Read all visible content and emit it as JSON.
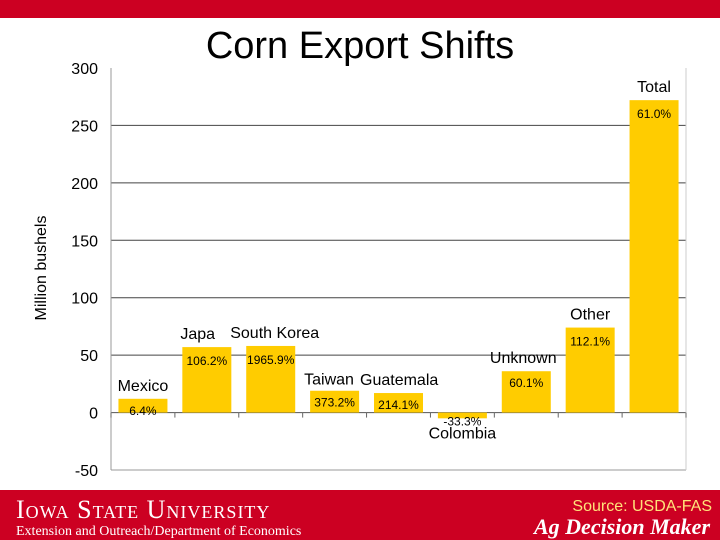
{
  "chart_data": {
    "type": "bar",
    "title": "Corn Export Shifts",
    "ylabel": "Million bushels",
    "xlabel": "",
    "ylim": [
      -50,
      300
    ],
    "yticks": [
      -50,
      0,
      50,
      100,
      150,
      200,
      250,
      300
    ],
    "grid": true,
    "categories": [
      "Mexico",
      "Japa",
      "South Korea",
      "Taiwan",
      "Guatemala",
      "Colombia",
      "Unknown",
      "Other",
      "Total"
    ],
    "values": [
      12,
      57,
      58,
      19,
      17,
      -5,
      36,
      74,
      272
    ],
    "data_labels": [
      "6.4%",
      "106.2%",
      "1965.9%",
      "373.2%",
      "214.1%",
      "-33.3%",
      "60.1%",
      "112.1%",
      "61.0%"
    ],
    "bar_color": "#ffcc00"
  },
  "footer": {
    "university": "Iowa State University",
    "department": "Extension and Outreach/Department of Economics",
    "source": "Source: USDA-FAS",
    "brand": "Ag Decision Maker"
  },
  "colors": {
    "accent": "#cc0022",
    "bar": "#ffcc00"
  }
}
